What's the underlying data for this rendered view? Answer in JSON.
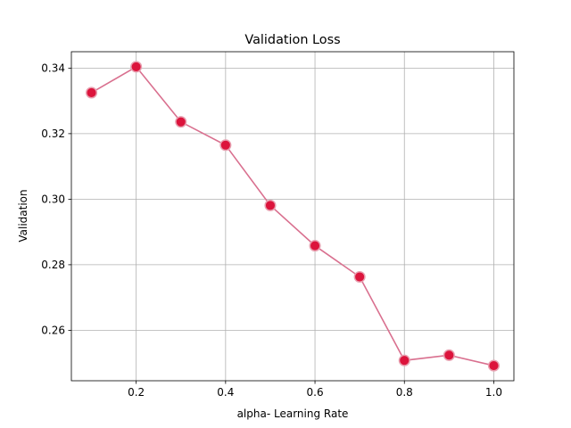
{
  "chart_data": {
    "type": "line",
    "title": "Validation Loss",
    "xlabel": "alpha- Learning Rate",
    "ylabel": "Validation",
    "x": [
      0.1,
      0.2,
      0.3,
      0.4,
      0.5,
      0.6,
      0.7,
      0.8,
      0.9,
      1.0
    ],
    "series": [
      {
        "values": [
          0.3325,
          0.3404,
          0.3236,
          0.3165,
          0.2981,
          0.2858,
          0.2763,
          0.2508,
          0.2524,
          0.2492
        ]
      }
    ],
    "xlim": [
      0.055,
      1.045
    ],
    "ylim": [
      0.2446,
      0.345
    ],
    "xticks": [
      0.2,
      0.4,
      0.6,
      0.8,
      1.0
    ],
    "xtick_labels": [
      "0.2",
      "0.4",
      "0.6",
      "0.8",
      "1.0"
    ],
    "yticks": [
      0.26,
      0.28,
      0.3,
      0.32,
      0.34
    ],
    "ytick_labels": [
      "0.26",
      "0.28",
      "0.30",
      "0.32",
      "0.34"
    ],
    "grid": true,
    "colors": {
      "line": "#d9708f",
      "marker_fill": "#dc143c",
      "marker_edge": "#e8a0b0",
      "grid": "#b0b0b0"
    }
  }
}
